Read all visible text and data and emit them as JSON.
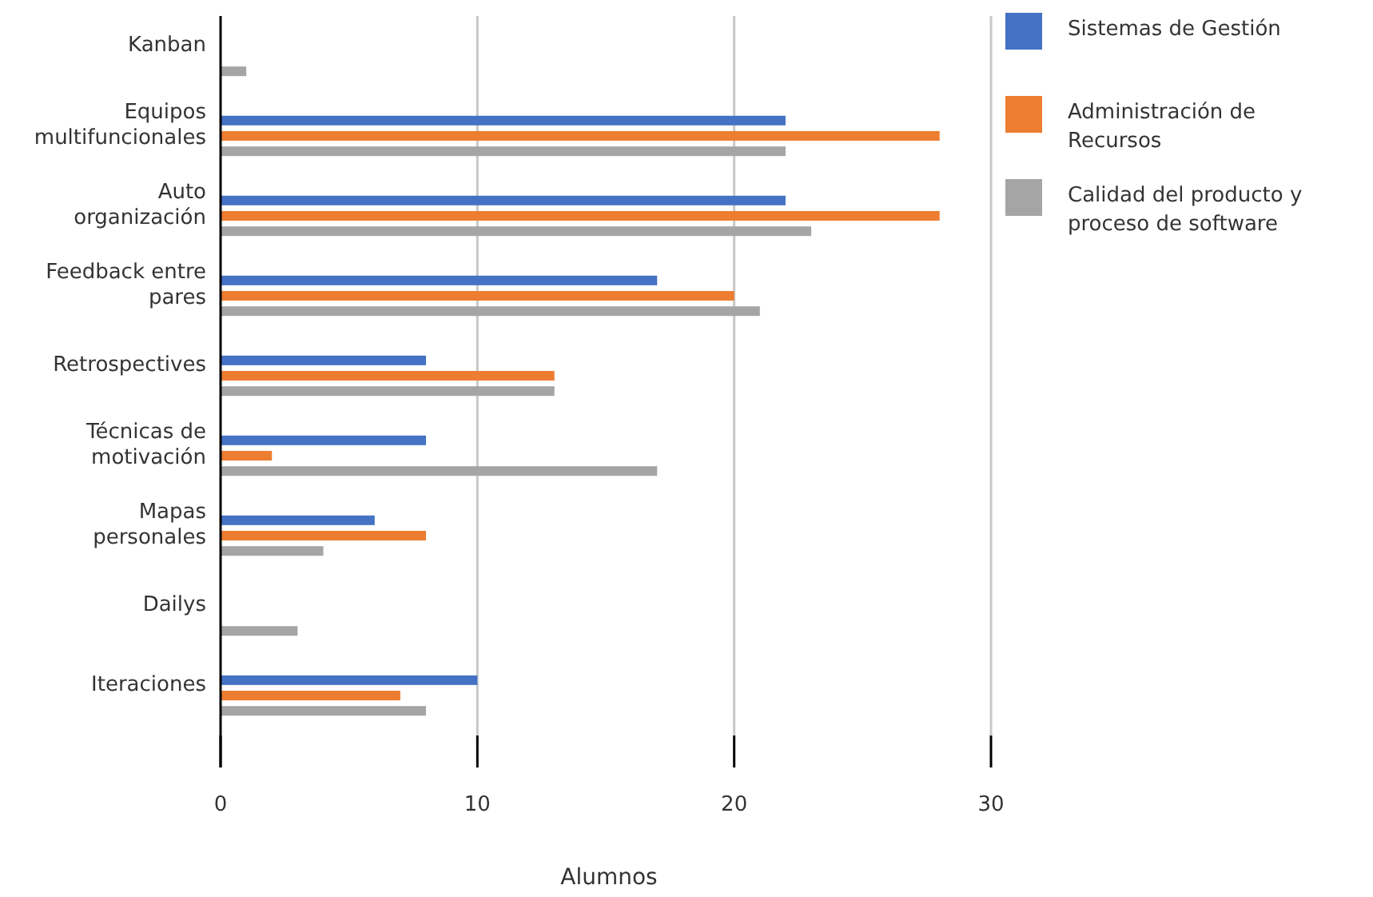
{
  "chart_data": {
    "type": "bar",
    "orientation": "horizontal",
    "xlabel": "Alumnos",
    "categories": [
      "Kanban",
      "Equipos multifuncionales",
      "Auto organización",
      "Feedback entre pares",
      "Retrospectives",
      "Técnicas de motivación",
      "Mapas personales",
      "Dailys",
      "Iteraciones"
    ],
    "series": [
      {
        "name": "Sistemas de Gestión",
        "color": "#4472c4",
        "values": [
          0,
          22,
          22,
          17,
          8,
          8,
          6,
          0,
          10
        ]
      },
      {
        "name": "Administración de Recursos",
        "color": "#ed7d31",
        "values": [
          0,
          28,
          28,
          20,
          13,
          2,
          8,
          0,
          7
        ]
      },
      {
        "name": "Calidad del producto y proceso de software",
        "color": "#a5a5a5",
        "values": [
          1,
          22,
          23,
          21,
          13,
          17,
          4,
          3,
          8
        ]
      }
    ],
    "xlim": [
      0,
      30
    ],
    "xticks": [
      0,
      10,
      20,
      30
    ],
    "grid": "x",
    "legend": "right"
  }
}
